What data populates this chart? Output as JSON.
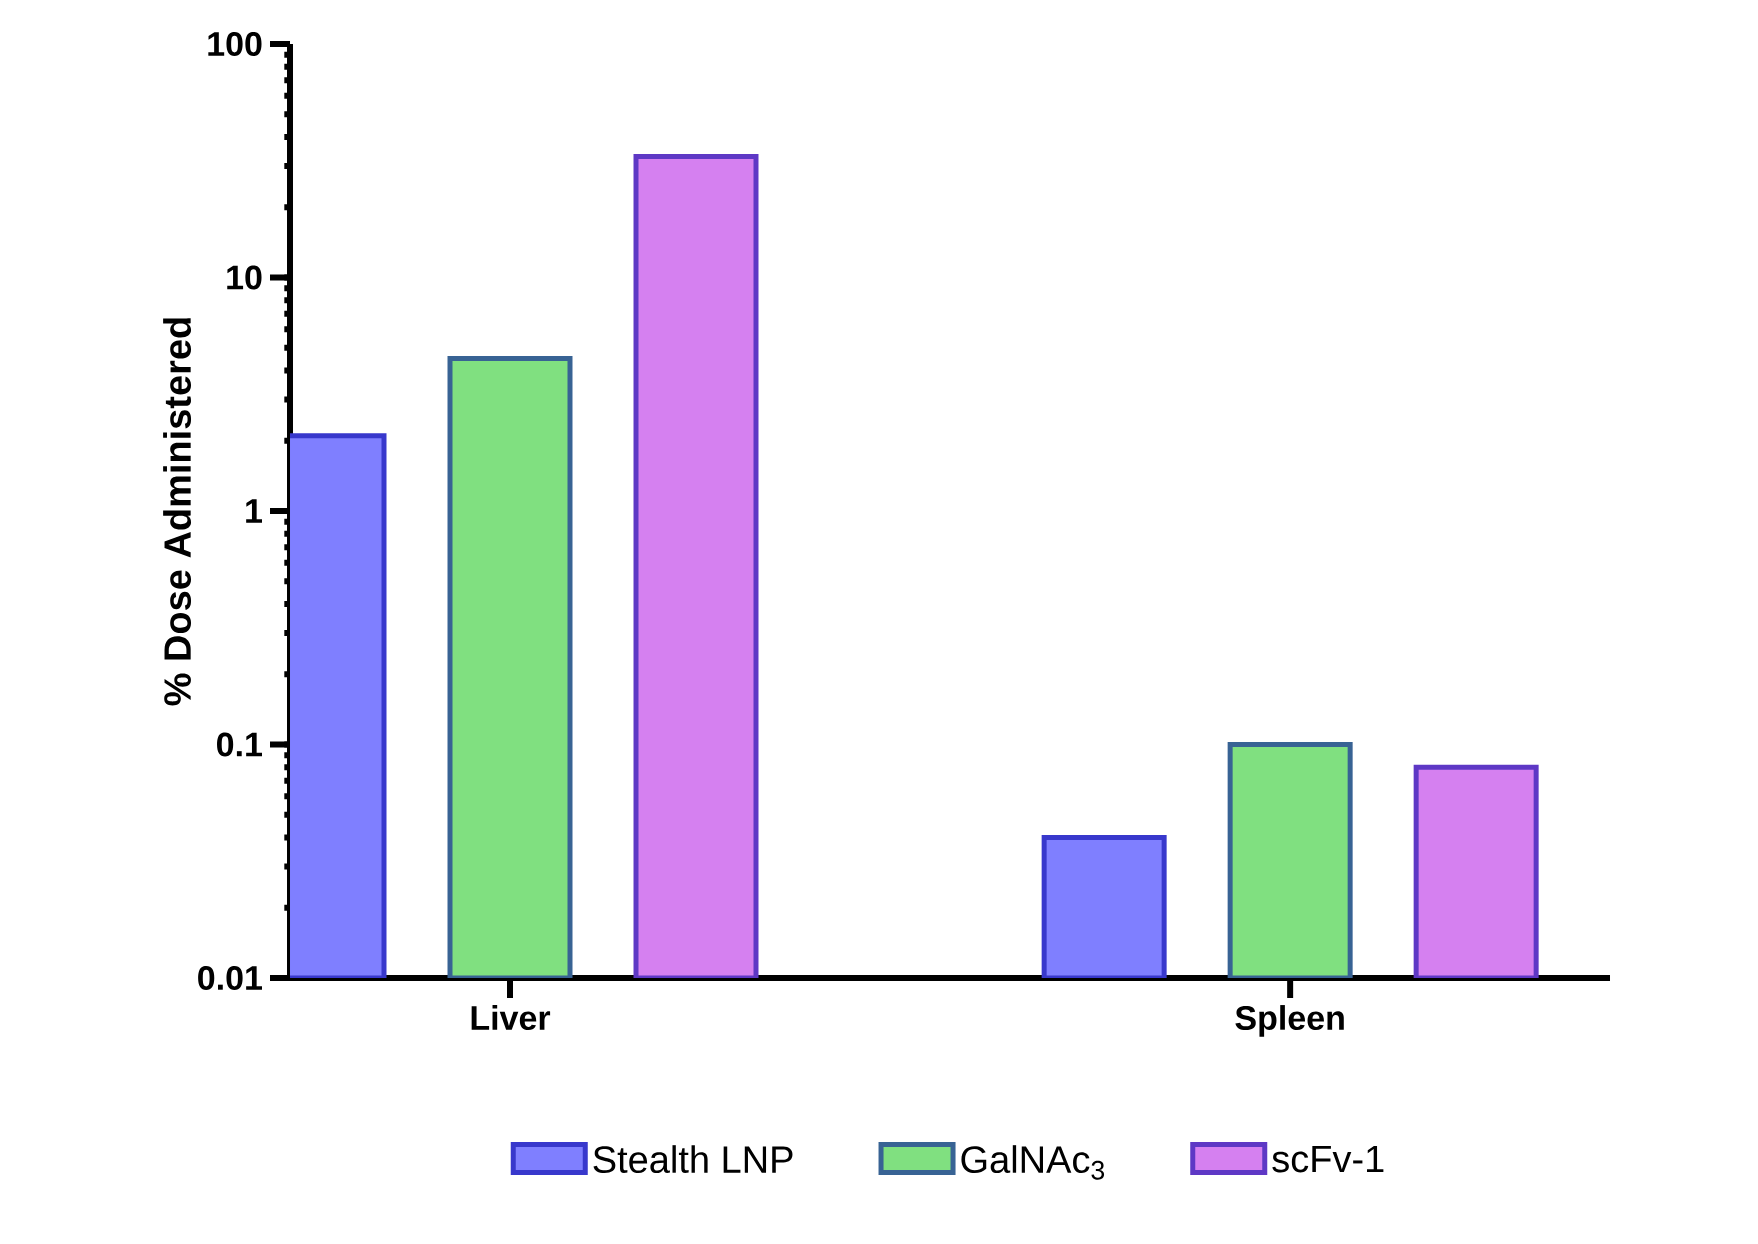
{
  "chart_data": {
    "type": "bar",
    "ylabel": "% Dose Administered",
    "categories": [
      "Liver",
      "Spleen"
    ],
    "series": [
      {
        "name": "Stealth LNP",
        "color": "#7f7fff",
        "values": [
          2.1,
          0.04
        ]
      },
      {
        "name": "GalNAc$_{3}$",
        "color": "#80e080",
        "values": [
          4.5,
          0.1
        ]
      },
      {
        "name": "scFv-1",
        "color": "#d580f0",
        "values": [
          33,
          0.08
        ]
      }
    ],
    "log": true,
    "ylim": [
      0.01,
      100
    ],
    "yticks": [
      0.01,
      0.1,
      1,
      10,
      100
    ],
    "grid": false,
    "legend": "bottom"
  }
}
